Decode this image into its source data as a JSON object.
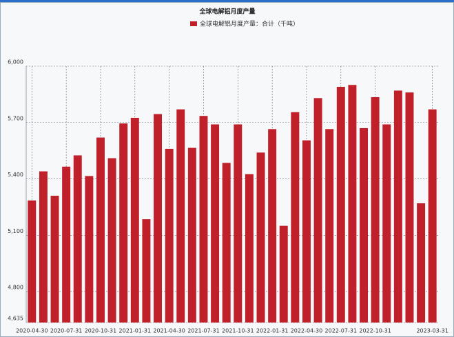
{
  "chart_data": {
    "type": "bar",
    "title": "全球电解铝月度产量",
    "series": [
      {
        "name": "全球电解铝月度产量：合计（千吨）",
        "color": "#c0202a",
        "values": [
          5285,
          5440,
          5310,
          5465,
          5525,
          5415,
          5620,
          5510,
          5695,
          5725,
          5185,
          5745,
          5560,
          5770,
          5565,
          5735,
          5690,
          5485,
          5690,
          5425,
          5540,
          5665,
          5150,
          5755,
          5605,
          5830,
          5665,
          5890,
          5900,
          5670,
          5835,
          5690,
          5870,
          5860,
          5270,
          5770
        ]
      }
    ],
    "categories": [
      "2020-04-30",
      null,
      null,
      "2020-07-31",
      null,
      null,
      "2020-10-31",
      null,
      null,
      "2021-01-31",
      null,
      null,
      "2021-04-30",
      null,
      null,
      "2021-07-31",
      null,
      null,
      "2021-10-31",
      null,
      null,
      "2022-01-31",
      null,
      null,
      "2022-04-30",
      null,
      null,
      "2022-07-31",
      null,
      null,
      "2022-10-31",
      null,
      null,
      null,
      null,
      "2023-03-31"
    ],
    "ylim": [
      4635,
      6000
    ],
    "yticks": [
      {
        "value": 4635,
        "label": "4,635"
      },
      {
        "value": 4800,
        "label": "4,800"
      },
      {
        "value": 5100,
        "label": "5,100"
      },
      {
        "value": 5400,
        "label": "5,400"
      },
      {
        "value": 5700,
        "label": "5,700"
      },
      {
        "value": 6000,
        "label": "6,000"
      }
    ],
    "grid": true
  }
}
